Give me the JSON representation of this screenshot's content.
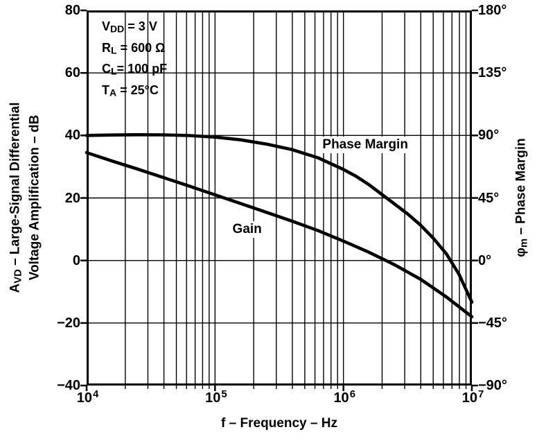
{
  "chart_data": {
    "type": "line",
    "title": "",
    "x_scale": "log",
    "xlabel": "f – Frequency – Hz",
    "x_log_range": [
      4,
      7
    ],
    "x_ticks": [
      {
        "base": "10",
        "exp": "4"
      },
      {
        "base": "10",
        "exp": "5"
      },
      {
        "base": "10",
        "exp": "6"
      },
      {
        "base": "10",
        "exp": "7"
      }
    ],
    "left_axis": {
      "title_pre": "A",
      "title_sub": "VD",
      "title_post": " – Large-Signal Differential",
      "title_line2": "Voltage Amplification – dB",
      "unit": "dB",
      "range": [
        -40,
        80
      ],
      "tick_labels": [
        "80",
        "60",
        "40",
        "20",
        "0",
        "−20",
        "−40"
      ]
    },
    "right_axis": {
      "title_pre": "φ",
      "title_sub": "m",
      "title_post": " – Phase Margin",
      "unit": "degrees",
      "range": [
        -90,
        180
      ],
      "tick_labels": [
        "180°",
        "135°",
        "90°",
        "45°",
        "0°",
        "−45°",
        "−90°"
      ]
    },
    "conditions": [
      {
        "parts": [
          {
            "t": "V"
          },
          {
            "s": "DD"
          },
          {
            "t": " = 3 V"
          }
        ]
      },
      {
        "parts": [
          {
            "t": "R"
          },
          {
            "s": "L"
          },
          {
            "t": " = 600 Ω"
          }
        ]
      },
      {
        "parts": [
          {
            "t": "C"
          },
          {
            "s": "L"
          },
          {
            "t": "= 100 pF"
          }
        ]
      },
      {
        "parts": [
          {
            "t": "T"
          },
          {
            "s": "A"
          },
          {
            "t": " = 25°C"
          }
        ]
      }
    ],
    "grid": true,
    "line_color": "#000000",
    "series": [
      {
        "name": "Phase Margin",
        "axis": "right",
        "unit": "deg",
        "label_pos": {
          "logf": 6.17,
          "dB": 37
        },
        "points_logf_deg": [
          [
            4.0,
            90
          ],
          [
            4.2,
            90.3
          ],
          [
            4.4,
            90.5
          ],
          [
            4.6,
            90.4
          ],
          [
            4.8,
            89.9
          ],
          [
            5.0,
            88.8
          ],
          [
            5.2,
            86.8
          ],
          [
            5.4,
            83.8
          ],
          [
            5.6,
            79.8
          ],
          [
            5.8,
            74.0
          ],
          [
            6.0,
            65.5
          ],
          [
            6.1,
            60.5
          ],
          [
            6.2,
            54.5
          ],
          [
            6.3,
            47.5
          ],
          [
            6.4,
            40.5
          ],
          [
            6.5,
            33.5
          ],
          [
            6.6,
            25.5
          ],
          [
            6.7,
            16.0
          ],
          [
            6.8,
            5.0
          ],
          [
            6.9,
            -10.0
          ],
          [
            7.0,
            -30.0
          ]
        ]
      },
      {
        "name": "Gain",
        "axis": "left",
        "unit": "dB",
        "label_pos": {
          "logf": 5.25,
          "dB": 10
        },
        "points_logf_db": [
          [
            4.0,
            34.5
          ],
          [
            4.2,
            31.8
          ],
          [
            4.4,
            29.2
          ],
          [
            4.6,
            26.5
          ],
          [
            4.8,
            23.8
          ],
          [
            5.0,
            21.0
          ],
          [
            5.2,
            18.2
          ],
          [
            5.4,
            15.4
          ],
          [
            5.6,
            12.6
          ],
          [
            5.8,
            9.6
          ],
          [
            6.0,
            6.2
          ],
          [
            6.2,
            2.6
          ],
          [
            6.4,
            -1.4
          ],
          [
            6.6,
            -6.0
          ],
          [
            6.8,
            -11.6
          ],
          [
            7.0,
            -18.0
          ]
        ]
      }
    ]
  }
}
